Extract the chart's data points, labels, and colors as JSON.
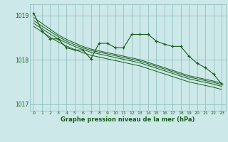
{
  "bg_color": "#cce8e8",
  "grid_color": "#88bbbb",
  "line_color": "#1a5c1a",
  "title": "Graphe pression niveau de la mer (hPa)",
  "title_color": "#1a5c1a",
  "xlim": [
    -0.5,
    23.5
  ],
  "ylim": [
    1016.85,
    1019.25
  ],
  "yticks": [
    1017,
    1018,
    1019
  ],
  "xticks": [
    0,
    1,
    2,
    3,
    4,
    5,
    6,
    7,
    8,
    9,
    10,
    11,
    12,
    13,
    14,
    15,
    16,
    17,
    18,
    19,
    20,
    21,
    22,
    23
  ],
  "main_data": [
    1019.05,
    1018.65,
    1018.47,
    1018.47,
    1018.27,
    1018.22,
    1018.22,
    1018.02,
    1018.37,
    1018.37,
    1018.27,
    1018.27,
    1018.57,
    1018.57,
    1018.57,
    1018.42,
    1018.35,
    1018.3,
    1018.3,
    1018.08,
    1017.92,
    1017.82,
    1017.68,
    1017.45
  ],
  "trend1": [
    1018.95,
    1018.82,
    1018.69,
    1018.56,
    1018.46,
    1018.38,
    1018.3,
    1018.24,
    1018.2,
    1018.16,
    1018.12,
    1018.08,
    1018.04,
    1018.0,
    1017.94,
    1017.88,
    1017.82,
    1017.76,
    1017.7,
    1017.64,
    1017.6,
    1017.56,
    1017.52,
    1017.47
  ],
  "trend2": [
    1018.88,
    1018.76,
    1018.64,
    1018.52,
    1018.42,
    1018.34,
    1018.27,
    1018.21,
    1018.17,
    1018.13,
    1018.09,
    1018.05,
    1018.01,
    1017.97,
    1017.91,
    1017.85,
    1017.79,
    1017.73,
    1017.67,
    1017.61,
    1017.57,
    1017.53,
    1017.49,
    1017.44
  ],
  "trend3": [
    1018.82,
    1018.7,
    1018.58,
    1018.47,
    1018.38,
    1018.3,
    1018.23,
    1018.17,
    1018.13,
    1018.09,
    1018.05,
    1018.01,
    1017.97,
    1017.93,
    1017.87,
    1017.81,
    1017.75,
    1017.69,
    1017.63,
    1017.57,
    1017.53,
    1017.49,
    1017.45,
    1017.4
  ],
  "trend4": [
    1018.75,
    1018.63,
    1018.51,
    1018.4,
    1018.31,
    1018.23,
    1018.16,
    1018.1,
    1018.06,
    1018.02,
    1017.98,
    1017.94,
    1017.9,
    1017.86,
    1017.8,
    1017.74,
    1017.68,
    1017.62,
    1017.56,
    1017.5,
    1017.46,
    1017.42,
    1017.38,
    1017.33
  ]
}
